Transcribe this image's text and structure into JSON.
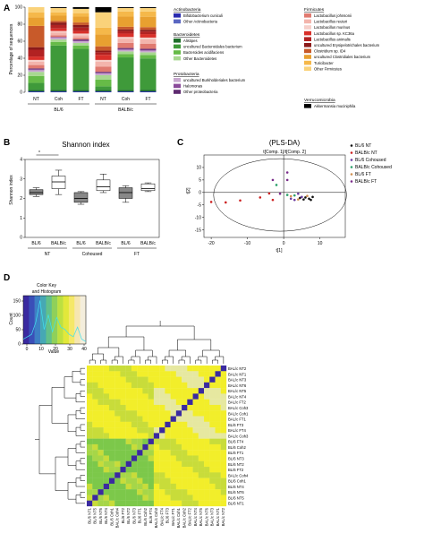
{
  "panels": {
    "A": "A",
    "B": "B",
    "C": "C",
    "D": "D"
  },
  "chart_data": [
    {
      "type": "bar",
      "panel": "A",
      "ylabel": "Percentage of sequences",
      "ylim": [
        0,
        100
      ],
      "yticks": [
        "0",
        "20",
        "40",
        "60",
        "80",
        "100"
      ],
      "categories": [
        "NT",
        "Coh",
        "FT",
        "NT",
        "Coh",
        "FT"
      ],
      "groups": [
        "BL/6",
        "BALB/c"
      ],
      "series": [
        {
          "name": "Bifidobacterium cuniculi",
          "color": "#2a2bb0",
          "values": [
            1,
            1,
            1,
            1,
            1,
            1
          ]
        },
        {
          "name": "Other Actinobacteria",
          "color": "#5a67c2",
          "values": [
            0,
            0,
            0,
            0,
            0,
            0
          ]
        },
        {
          "name": "Alistipes",
          "color": "#1f6f2a",
          "values": [
            2,
            2,
            2,
            2,
            2,
            2
          ]
        },
        {
          "name": "uncultured Bacteroidales bacterium",
          "color": "#3f9a3a",
          "values": [
            8,
            52,
            48,
            4,
            38,
            36
          ]
        },
        {
          "name": "Bacteroides acidifaciens",
          "color": "#66bb47",
          "values": [
            8,
            4,
            4,
            8,
            4,
            4
          ]
        },
        {
          "name": "Other Bacteroidetes",
          "color": "#a8d890",
          "values": [
            5,
            3,
            3,
            5,
            3,
            3
          ]
        },
        {
          "name": "uncultured Burkholderiales bacterium",
          "color": "#c8a8cf",
          "values": [
            2,
            2,
            2,
            2,
            2,
            2
          ]
        },
        {
          "name": "Halomonas",
          "color": "#8a4a9a",
          "values": [
            1,
            1,
            1,
            1,
            1,
            1
          ]
        },
        {
          "name": "Other proteobacteria",
          "color": "#5e2a70",
          "values": [
            1,
            0,
            1,
            1,
            1,
            1
          ]
        },
        {
          "name": "Lactobacillus johnsonii",
          "color": "#e07a70",
          "values": [
            4,
            2,
            2,
            6,
            6,
            6
          ]
        },
        {
          "name": "Lactobacillus reuteri",
          "color": "#f3b4ac",
          "values": [
            4,
            3,
            3,
            6,
            5,
            5
          ]
        },
        {
          "name": "Lactobacillus murinus",
          "color": "#f6cfc9",
          "values": [
            2,
            2,
            2,
            2,
            2,
            2
          ]
        },
        {
          "name": "Lactobacillus sp. KC36a",
          "color": "#d9302a",
          "values": [
            4,
            3,
            3,
            6,
            4,
            4
          ]
        },
        {
          "name": "Lactobacillus animalis",
          "color": "#b22222",
          "values": [
            8,
            4,
            4,
            3,
            3,
            3
          ]
        },
        {
          "name": "uncultured Erysipelotrichales bacterium",
          "color": "#8b1a1a",
          "values": [
            3,
            3,
            3,
            2,
            2,
            2
          ]
        },
        {
          "name": "Clostridium sp. ID4",
          "color": "#c85a2a",
          "values": [
            25,
            2,
            3,
            5,
            3,
            3
          ]
        },
        {
          "name": "uncultured Clostridiales bacterium",
          "color": "#e8a030",
          "values": [
            10,
            6,
            7,
            14,
            12,
            12
          ]
        },
        {
          "name": "Turicibacter",
          "color": "#f5b84a",
          "values": [
            6,
            4,
            4,
            8,
            6,
            6
          ]
        },
        {
          "name": "Other Firmicutes",
          "color": "#fad27a",
          "values": [
            6,
            5,
            5,
            18,
            4,
            4
          ]
        },
        {
          "name": "Akkermansia muciniphila",
          "color": "#000000",
          "values": [
            0,
            1,
            2,
            6,
            1,
            1
          ]
        }
      ],
      "legend_groups": {
        "actinobacteria": "Actinobacteria",
        "bacteroidetes": "Bacteroidetes",
        "proteobacteria": "Protobacteria",
        "firmicutes": "Firmicutes",
        "verrucomicrobia": "Verrucomicrobia"
      }
    },
    {
      "type": "boxplot",
      "panel": "B",
      "title": "Shannon index",
      "ylabel": "Shannon index",
      "ylim": [
        0,
        4
      ],
      "yticks": [
        "0",
        "1",
        "2",
        "3",
        "4"
      ],
      "categories": [
        "BL/6",
        "BALB/c",
        "BL/6",
        "BALB/c",
        "BL/6",
        "BALB/c"
      ],
      "groups": [
        "NT",
        "Cohoused",
        "FT"
      ],
      "significance": "*",
      "boxes": [
        {
          "min": 2.1,
          "q1": 2.2,
          "median": 2.3,
          "q3": 2.45,
          "max": 2.55,
          "fill": "#888888"
        },
        {
          "min": 2.2,
          "q1": 2.5,
          "median": 2.85,
          "q3": 3.15,
          "max": 3.45,
          "fill": "#ffffff"
        },
        {
          "min": 1.7,
          "q1": 1.8,
          "median": 2.0,
          "q3": 2.3,
          "max": 2.35,
          "fill": "#888888"
        },
        {
          "min": 2.3,
          "q1": 2.4,
          "median": 2.6,
          "q3": 2.95,
          "max": 3.25,
          "fill": "#ffffff"
        },
        {
          "min": 1.8,
          "q1": 2.0,
          "median": 2.3,
          "q3": 2.55,
          "max": 2.65,
          "fill": "#888888"
        },
        {
          "min": 2.35,
          "q1": 2.4,
          "median": 2.5,
          "q3": 2.75,
          "max": 2.8,
          "fill": "#ffffff"
        }
      ]
    },
    {
      "type": "scatter",
      "panel": "C",
      "title": "(PLS-DA)",
      "subtitle": "t[Comp. 1]/t[Comp. 2]",
      "xlabel": "t[1]",
      "ylabel": "t[2]",
      "xlim": [
        -22,
        17
      ],
      "ylim": [
        -18,
        15
      ],
      "xticks": [
        "-20",
        "-10",
        "0",
        "10"
      ],
      "yticks": [
        "-15",
        "-10",
        "-5",
        "0",
        "5",
        "10"
      ],
      "legend_position": "right",
      "series": [
        {
          "name": "BL/6 NT",
          "color": "#111111",
          "points": [
            [
              4.5,
              -2.2
            ],
            [
              5.5,
              -2.8
            ],
            [
              7,
              -2.5
            ],
            [
              8,
              -1.8
            ],
            [
              6,
              -2.0
            ],
            [
              7.5,
              -3.0
            ]
          ]
        },
        {
          "name": "BALB/c NT",
          "color": "#cc2020",
          "points": [
            [
              -20,
              -3.8
            ],
            [
              -16,
              -4.0
            ],
            [
              -12,
              -3.2
            ],
            [
              -3,
              -3.0
            ],
            [
              -4,
              -0.4
            ],
            [
              -6.5,
              -2.0
            ]
          ]
        },
        {
          "name": "BL/6 Cohoused",
          "color": "#6a3ca0",
          "points": [
            [
              3,
              -3.0
            ],
            [
              4,
              -0.5
            ],
            [
              5,
              -1.8
            ],
            [
              2,
              -2.5
            ]
          ]
        },
        {
          "name": "BALB/c Cohoused",
          "color": "#2aa06a",
          "points": [
            [
              -2,
              3.0
            ],
            [
              1,
              -1.0
            ],
            [
              3,
              -1.2
            ]
          ]
        },
        {
          "name": "BL/6 FT",
          "color": "#d09050",
          "points": [
            [
              2,
              -1.5
            ],
            [
              6.5,
              -1.4
            ],
            [
              4,
              -2.8
            ]
          ]
        },
        {
          "name": "BALB/c FT",
          "color": "#7a2a8a",
          "points": [
            [
              1,
              8.0
            ],
            [
              1,
              5.0
            ],
            [
              -3,
              5.0
            ],
            [
              -1,
              -0.5
            ]
          ]
        }
      ]
    },
    {
      "type": "heatmap",
      "panel": "D",
      "color_key_title": "Color Key",
      "histogram_title": "and Histogram",
      "key_xlabel": "Value",
      "key_ylabel": "Count",
      "key_xticks": [
        "0",
        "10",
        "20",
        "30",
        "40"
      ],
      "key_yticks": [
        "0",
        "50",
        "100",
        "150"
      ],
      "row_labels": [
        "BAL/c NT2",
        "BAL/c NT1",
        "BAL/c NT3",
        "BAL/c NT6",
        "BAL/c NT5",
        "BAL/c NT4",
        "BAL/c FT2",
        "BAL/c Coh3",
        "BAL/c Coh1",
        "BAL/c FT1",
        "BL/6 FT3",
        "BAL/c FT4",
        "BAL/c Coh3",
        "BL/6 FT4",
        "BL/6 Coh2",
        "BL/6 FT1",
        "BL/6 NT3",
        "BL/6 NT2",
        "BL/6 FT2",
        "BAL/c Coh4",
        "BL/6 Coh1",
        "BL/6 NT4",
        "BL/6 NT6",
        "BL/6 NT5",
        "BL/6 NT1"
      ],
      "col_labels": [
        "BL/6 NT1",
        "BL/6 NT5",
        "BL/6 NT6",
        "BL/6 NT4",
        "BL/6 Coh1",
        "BAL/c Coh4",
        "BL/6 FT2",
        "BL/6 NT2",
        "BL/6 NT3",
        "BL/6 FT1",
        "BL/6 Coh2",
        "BL/6 FT4",
        "BAL/c Coh3",
        "BAL/c FT4",
        "BL/6 FT3",
        "BAL/c FT1",
        "BAL/c Coh1",
        "BAL/c Coh2",
        "BAL/c FT2",
        "BAL/c NT4",
        "BAL/c NT5",
        "BAL/c NT6",
        "BAL/c NT3",
        "BAL/c NT1",
        "BAL/c NT2"
      ],
      "diagonal_color": "#3a2aa0",
      "high_color": "#f2ee2a",
      "mid_color": "#c8dc3a",
      "low_color": "#7cc84a"
    }
  ]
}
